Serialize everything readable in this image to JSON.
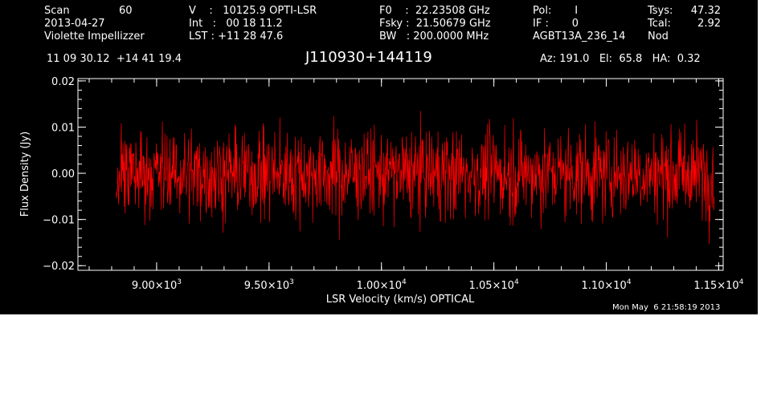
{
  "header": {
    "col1": [
      {
        "label": "Scan",
        "value": "60"
      },
      {
        "text": "2013-04-27"
      },
      {
        "text": "Violette Impellizzer"
      }
    ],
    "col2": [
      {
        "text": "V    :   10125.9 OPTI-LSR"
      },
      {
        "text": "Int   :   00 18 11.2"
      },
      {
        "text": "LST : +11 28 47.6"
      }
    ],
    "col3": [
      {
        "text": "F0    :  22.23508 GHz"
      },
      {
        "text": "Fsky :  21.50679 GHz"
      },
      {
        "text": "BW   : 200.0000 MHz"
      }
    ],
    "col4": [
      {
        "text": "Pol:       I"
      },
      {
        "text": "IF :       0"
      },
      {
        "text": "AGBT13A_236_14"
      }
    ],
    "col5": [
      {
        "label": "Tsys:",
        "value": "47.32"
      },
      {
        "label": "Tcal:",
        "value": "2.92"
      },
      {
        "label": "Nod",
        "value": ""
      }
    ],
    "coords": "11 09 30.12  +14 41 19.4",
    "source": "J110930+144119",
    "azelha": "Az: 191.0   El:  65.8   HA:  0.32",
    "timestamp": "Mon May  6 21:58:19 2013"
  },
  "chart_data": {
    "type": "line",
    "xlabel": "LSR Velocity (km/s) OPTICAL",
    "ylabel": "Flux Density (Jy)",
    "xlim": [
      8650,
      11520
    ],
    "ylim": [
      -0.021,
      0.0205
    ],
    "xticks": [
      {
        "value": 9000,
        "mant": "9.00",
        "exp": "3"
      },
      {
        "value": 9500,
        "mant": "9.50",
        "exp": "3"
      },
      {
        "value": 10000,
        "mant": "1.00",
        "exp": "4"
      },
      {
        "value": 10500,
        "mant": "1.05",
        "exp": "4"
      },
      {
        "value": 11000,
        "mant": "1.10",
        "exp": "4"
      },
      {
        "value": 11500,
        "mant": "1.15",
        "exp": "4"
      }
    ],
    "yticks": [
      {
        "value": 0.02,
        "label": "0.02"
      },
      {
        "value": 0.01,
        "label": "0.01"
      },
      {
        "value": 0.0,
        "label": "0.00"
      },
      {
        "value": -0.01,
        "label": "−0.01"
      },
      {
        "value": -0.02,
        "label": "−0.02"
      }
    ],
    "series": [
      {
        "color": "#ff0000",
        "x_start": 8820,
        "x_end": 11480,
        "n_points": 1400,
        "mean": 0.0,
        "noise_sigma": 0.0048,
        "clip": [
          -0.0175,
          0.0185
        ]
      }
    ]
  }
}
